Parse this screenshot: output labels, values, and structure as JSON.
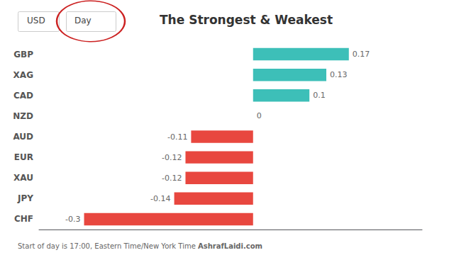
{
  "chart_data": {
    "type": "bar",
    "orientation": "horizontal",
    "title": "The Strongest & Weakest",
    "categories": [
      "GBP",
      "XAG",
      "CAD",
      "NZD",
      "AUD",
      "EUR",
      "XAU",
      "JPY",
      "CHF"
    ],
    "values": [
      0.17,
      0.13,
      0.1,
      0.0,
      -0.11,
      -0.12,
      -0.12,
      -0.14,
      -0.3
    ],
    "colors": [
      "#3dbfb8",
      "#3dbfb8",
      "#3dbfb8",
      "#3dbfb8",
      "#e8473f",
      "#e8473f",
      "#e8473f",
      "#e8473f",
      "#e8473f"
    ],
    "xlim": [
      -0.38,
      0.3
    ],
    "grid": false,
    "data_labels": true,
    "tick_labels": "y",
    "annotations": [
      "Start of day is 17:00, Eastern Time/New York Time ",
      "AshrafLaidi.com",
      "USD",
      "Day"
    ]
  }
}
